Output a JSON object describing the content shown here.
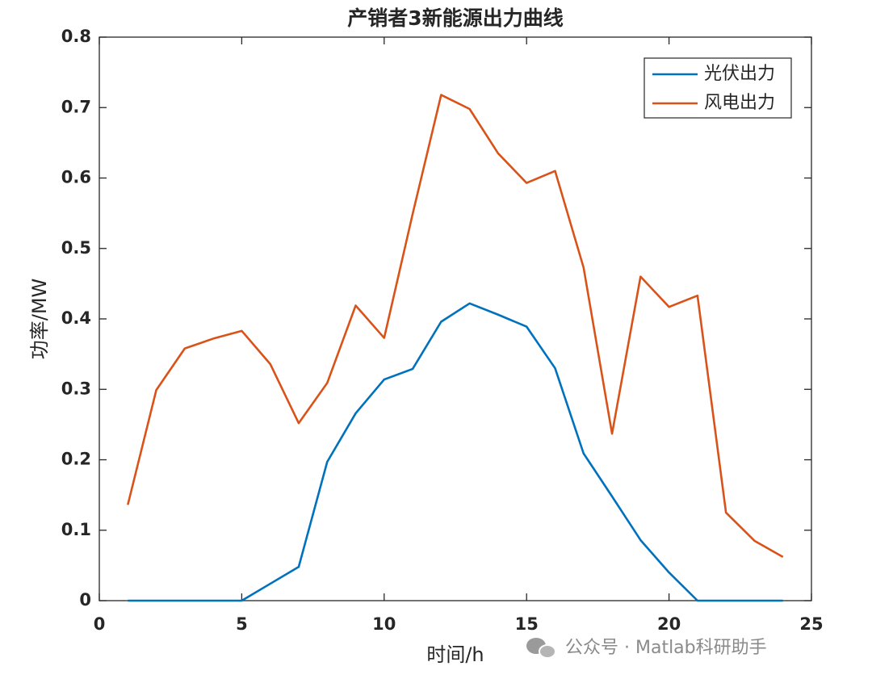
{
  "chart_data": {
    "type": "line",
    "title": "产销者3新能源出力曲线",
    "x_label": "时间/h",
    "y_label": "功率/MW",
    "x": [
      1,
      2,
      3,
      4,
      5,
      6,
      7,
      8,
      9,
      10,
      11,
      12,
      13,
      14,
      15,
      16,
      17,
      18,
      19,
      20,
      21,
      22,
      23,
      24
    ],
    "series": [
      {
        "name": "光伏出力",
        "color": "#0072BD",
        "values": [
          0,
          0,
          0,
          0,
          0,
          0.024,
          0.048,
          0.197,
          0.266,
          0.314,
          0.329,
          0.396,
          0.422,
          0.406,
          0.389,
          0.33,
          0.209,
          0.148,
          0.086,
          0.04,
          0,
          0,
          0,
          0
        ]
      },
      {
        "name": "风电出力",
        "color": "#D95319",
        "values": [
          0.136,
          0.299,
          0.358,
          0.372,
          0.383,
          0.336,
          0.252,
          0.309,
          0.419,
          0.373,
          0.549,
          0.718,
          0.698,
          0.635,
          0.593,
          0.61,
          0.473,
          0.237,
          0.46,
          0.417,
          0.433,
          0.125,
          0.085,
          0.062
        ]
      }
    ],
    "xlim": [
      0,
      25
    ],
    "xticks": [
      0,
      5,
      10,
      15,
      20,
      25
    ],
    "ylim": [
      0,
      0.8
    ],
    "yticks": [
      0,
      0.1,
      0.2,
      0.3,
      0.4,
      0.5,
      0.6,
      0.7,
      0.8
    ],
    "grid": false,
    "legend": "northeast",
    "watermark": "公众号 · Matlab科研助手"
  }
}
